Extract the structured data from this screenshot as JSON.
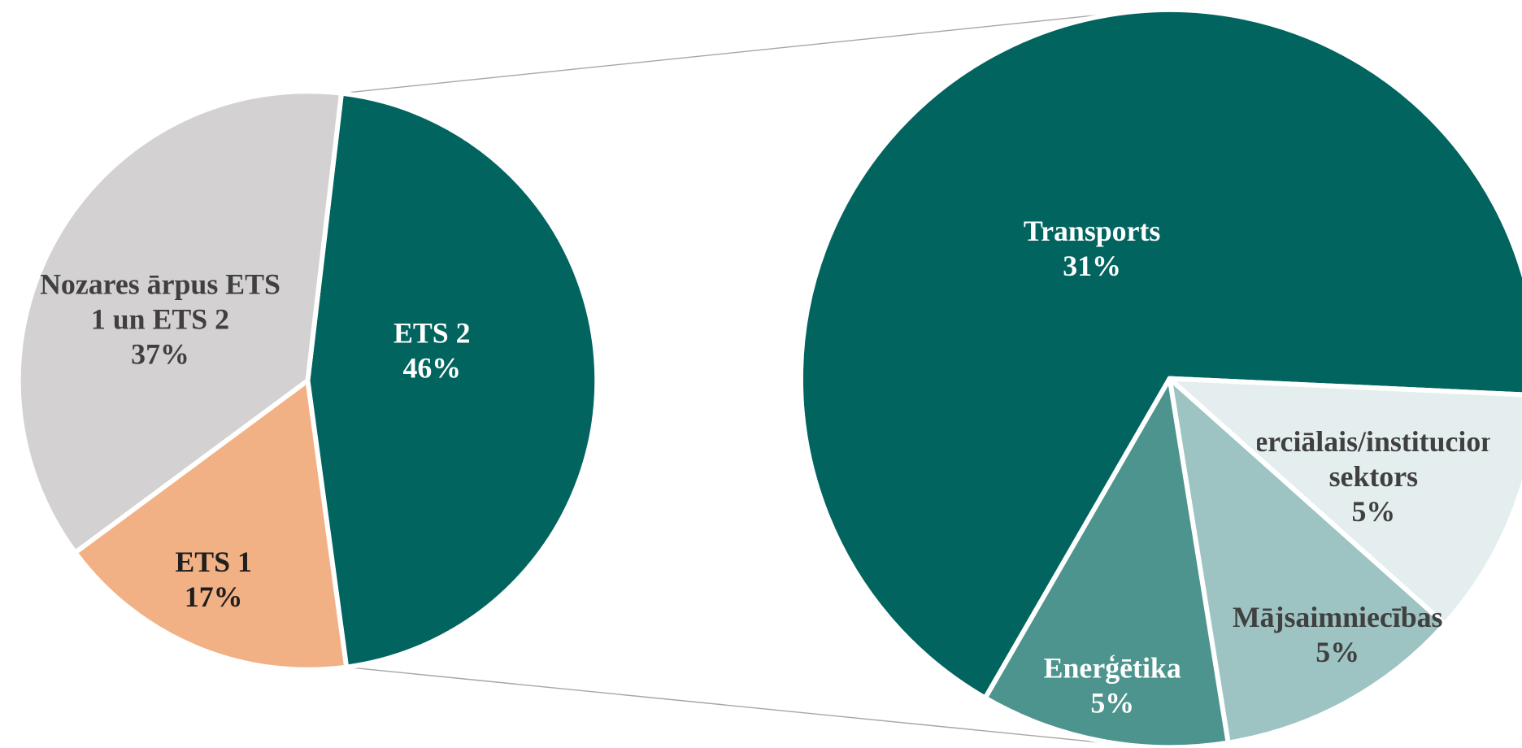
{
  "chart_data": [
    {
      "type": "pie",
      "categories": [
        "ETS 2",
        "ETS 1",
        "Nozares ārpus ETS 1 un ETS 2"
      ],
      "values": [
        46,
        17,
        37
      ],
      "value_labels": [
        "46%",
        "17%",
        "37%"
      ],
      "colors": [
        "#02645f",
        "#f2b185",
        "#d3d1d2"
      ]
    },
    {
      "type": "pie",
      "categories": [
        "Transports",
        "Komerciālais/institucionālais sektors",
        "Mājsaimniecības",
        "Enerģētika"
      ],
      "values": [
        31,
        5,
        5,
        5
      ],
      "value_labels": [
        "31%",
        "5%",
        "5%",
        "5%"
      ],
      "colors": [
        "#02645f",
        "#e4eeee",
        "#9dc4c2",
        "#4d948f"
      ]
    }
  ]
}
